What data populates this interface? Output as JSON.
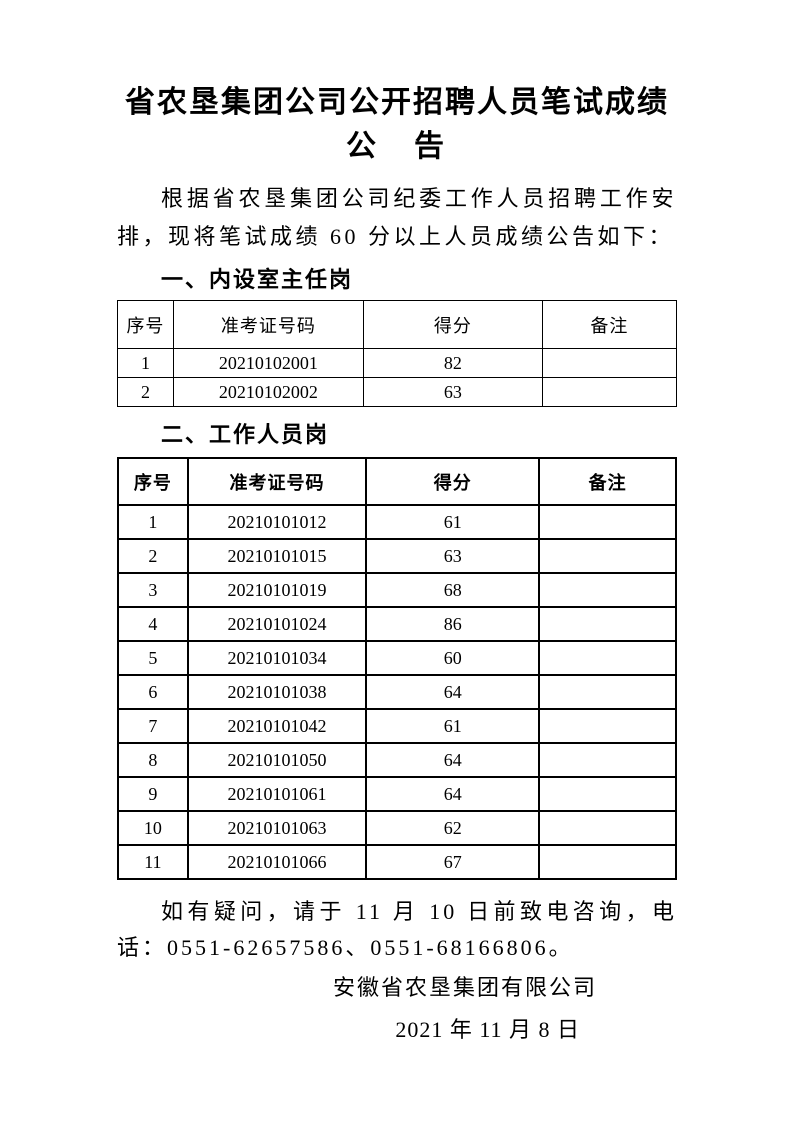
{
  "document": {
    "title_line1": "省农垦集团公司公开招聘人员笔试成绩",
    "title_line2": "公　告",
    "intro": "根据省农垦集团公司纪委工作人员招聘工作安排，现将笔试成绩 60 分以上人员成绩公告如下：",
    "sections": [
      {
        "heading": "一、内设室主任岗",
        "table": {
          "headers": [
            "序号",
            "准考证号码",
            "得分",
            "备注"
          ],
          "rows": [
            [
              "1",
              "20210102001",
              "82",
              ""
            ],
            [
              "2",
              "20210102002",
              "63",
              ""
            ]
          ]
        }
      },
      {
        "heading": "二、工作人员岗",
        "table": {
          "headers": [
            "序号",
            "准考证号码",
            "得分",
            "备注"
          ],
          "rows": [
            [
              "1",
              "20210101012",
              "61",
              ""
            ],
            [
              "2",
              "20210101015",
              "63",
              ""
            ],
            [
              "3",
              "20210101019",
              "68",
              ""
            ],
            [
              "4",
              "20210101024",
              "86",
              ""
            ],
            [
              "5",
              "20210101034",
              "60",
              ""
            ],
            [
              "6",
              "20210101038",
              "64",
              ""
            ],
            [
              "7",
              "20210101042",
              "61",
              ""
            ],
            [
              "8",
              "20210101050",
              "64",
              ""
            ],
            [
              "9",
              "20210101061",
              "64",
              ""
            ],
            [
              "10",
              "20210101063",
              "62",
              ""
            ],
            [
              "11",
              "20210101066",
              "67",
              ""
            ]
          ]
        }
      }
    ],
    "closing": {
      "contact_line": "如有疑问，请于 11 月 10 日前致电咨询，电话：0551-62657586、0551-68166806。",
      "issuer": "安徽省农垦集团有限公司",
      "date": "2021 年 11 月 8 日"
    },
    "colors": {
      "text": "#000000",
      "background": "#ffffff",
      "table_border": "#000000"
    }
  }
}
